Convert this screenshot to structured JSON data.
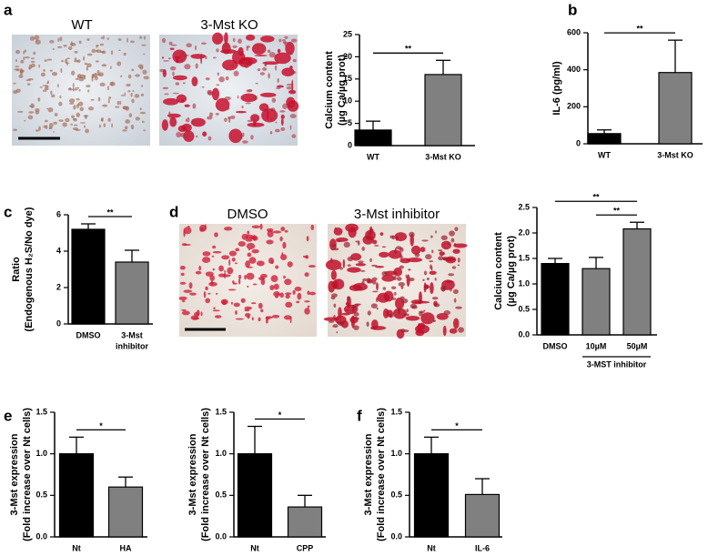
{
  "panel_labels": [
    "a",
    "b",
    "c",
    "d",
    "e",
    "f"
  ],
  "images": [
    {
      "label": "WT"
    },
    {
      "label": "3-Mst KO"
    },
    {
      "label": "DMSO"
    },
    {
      "label": "3-Mst inhibitor"
    }
  ],
  "chart_data": [
    {
      "type": "bar",
      "ylabel": [
        "Calcium content",
        "(µg Ca/µg prot)"
      ],
      "categories": [
        "WT",
        "3-Mst KO"
      ],
      "values": [
        3.5,
        16
      ],
      "errors": [
        2,
        3.2
      ],
      "colors": [
        "#000000",
        "#808080"
      ],
      "ylim": [
        0,
        25
      ],
      "yticks": [
        0,
        5,
        10,
        15,
        20,
        25
      ],
      "significance": [
        {
          "from": 0,
          "to": 1,
          "label": "**"
        }
      ]
    },
    {
      "type": "bar",
      "ylabel": [
        "IL-6 (pg/ml)"
      ],
      "categories": [
        "WT",
        "3-Mst KO"
      ],
      "values": [
        55,
        385
      ],
      "errors": [
        20,
        175
      ],
      "colors": [
        "#000000",
        "#808080"
      ],
      "ylim": [
        0,
        600
      ],
      "yticks": [
        0,
        200,
        400,
        600
      ],
      "significance": [
        {
          "from": 0,
          "to": 1,
          "label": "**"
        }
      ]
    },
    {
      "type": "bar",
      "ylabel": [
        "Ratio",
        "(Endogenous H₂S/No dye)"
      ],
      "categories": [
        [
          "DMSO"
        ],
        [
          "3-Mst",
          "inhibitor"
        ]
      ],
      "values": [
        5.2,
        3.4
      ],
      "errors": [
        0.3,
        0.65
      ],
      "colors": [
        "#000000",
        "#808080"
      ],
      "ylim": [
        0,
        6
      ],
      "yticks": [
        0,
        2,
        4,
        6
      ],
      "significance": [
        {
          "from": 0,
          "to": 1,
          "label": "**"
        }
      ]
    },
    {
      "type": "bar",
      "ylabel": [
        "Calcium content",
        "(µg Ca/µg prot)"
      ],
      "categories": [
        [
          "DMSO"
        ],
        [
          "10µM"
        ],
        [
          "50µM"
        ]
      ],
      "values": [
        1.4,
        1.3,
        2.08
      ],
      "errors": [
        0.1,
        0.22,
        0.13
      ],
      "colors": [
        "#000000",
        "#808080",
        "#808080"
      ],
      "ylim": [
        0,
        2.5
      ],
      "yticks": [
        {
          "value": 0,
          "label": "0.0"
        },
        0.5,
        {
          "value": 1,
          "label": "1.0"
        },
        1.5,
        {
          "value": 2,
          "label": "2.0"
        },
        2.5
      ],
      "significance": [
        {
          "from": 0,
          "to": 2,
          "label": "**"
        },
        {
          "from": 1,
          "to": 2,
          "label": "**"
        }
      ],
      "group_label": {
        "text": "3-MST inhibitor",
        "from": 1,
        "to": 2
      }
    },
    {
      "type": "bar",
      "ylabel": [
        "3-Mst expression",
        "(Fold increase over Nt cells)"
      ],
      "categories": [
        [
          "Nt"
        ],
        [
          "HA"
        ]
      ],
      "values": [
        1.0,
        0.6
      ],
      "errors": [
        0.2,
        0.12
      ],
      "colors": [
        "#000000",
        "#808080"
      ],
      "ylim": [
        0,
        1.5
      ],
      "yticks": [
        {
          "value": 0,
          "label": "0.0"
        },
        0.5,
        {
          "value": 1,
          "label": "1.0"
        },
        1.5
      ],
      "significance": [
        {
          "from": 0,
          "to": 1,
          "label": "*"
        }
      ]
    },
    {
      "type": "bar",
      "ylabel": [
        "3-Mst expression",
        "(Fold increase over Nt cells)"
      ],
      "categories": [
        [
          "Nt"
        ],
        [
          "CPP"
        ]
      ],
      "values": [
        1.0,
        0.36
      ],
      "errors": [
        0.33,
        0.14
      ],
      "colors": [
        "#000000",
        "#808080"
      ],
      "ylim": [
        0,
        1.5
      ],
      "yticks": [
        {
          "value": 0,
          "label": "0.0"
        },
        0.5,
        {
          "value": 1,
          "label": "1.0"
        },
        1.5
      ],
      "significance": [
        {
          "from": 0,
          "to": 1,
          "label": "*"
        }
      ]
    },
    {
      "type": "bar",
      "ylabel": [
        "3-Mst expression",
        "(Fold increase over Nt cells)"
      ],
      "categories": [
        [
          "Nt"
        ],
        [
          "IL-6"
        ]
      ],
      "values": [
        1.0,
        0.51
      ],
      "errors": [
        0.2,
        0.19
      ],
      "colors": [
        "#000000",
        "#808080"
      ],
      "ylim": [
        0,
        1.5
      ],
      "yticks": [
        {
          "value": 0,
          "label": "0.0"
        },
        0.5,
        {
          "value": 1,
          "label": "1.0"
        },
        1.5
      ],
      "significance": [
        {
          "from": 0,
          "to": 1,
          "label": "*"
        }
      ]
    }
  ]
}
